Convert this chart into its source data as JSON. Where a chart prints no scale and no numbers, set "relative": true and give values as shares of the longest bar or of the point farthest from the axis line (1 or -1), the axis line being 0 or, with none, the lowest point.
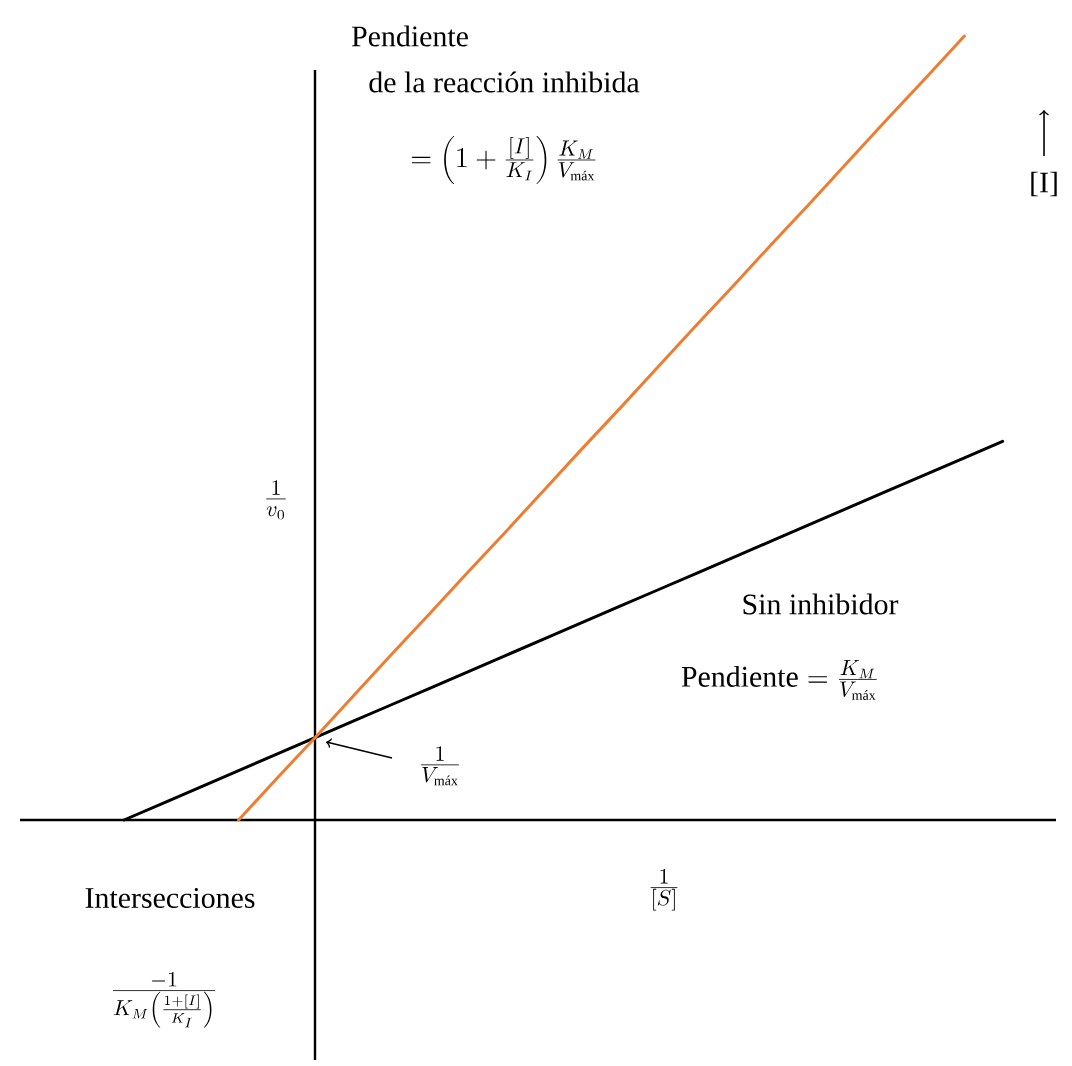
{
  "chart_data": {
    "type": "line",
    "relative": true,
    "xlabel": "\\frac{1}{[S]}",
    "ylabel": "\\frac{1}{v_0}",
    "categories": [
      null,
      null,
      null,
      null,
      null,
      null,
      null,
      null,
      null,
      null,
      null,
      null,
      null,
      null,
      null,
      null,
      null,
      null,
      null,
      null,
      null,
      null,
      null,
      null
    ],
    "series": [
      {
        "name": "Sin inhibidor",
        "color": "#000000",
        "values": [
          0,
          0.021,
          0.042,
          0.063,
          0.084,
          0.105,
          0.126,
          0.147,
          0.168,
          0.189,
          0.21,
          0.231,
          0.252,
          0.273,
          0.294,
          0.315,
          0.336,
          0.357,
          0.378,
          0.399,
          0.42,
          0.441,
          0.462,
          0.483
        ]
      },
      {
        "color": "#ed7d31",
        "values": [
          null,
          null,
          null,
          0,
          0.053,
          0.105,
          0.158,
          0.211,
          0.263,
          0.316,
          0.368,
          0.421,
          0.474,
          0.526,
          0.579,
          0.632,
          0.684,
          0.737,
          0.789,
          0.842,
          0.895,
          0.947,
          1.0,
          null
        ]
      }
    ],
    "annotations": [
      "Pendiente",
      "de la reacción inhibida",
      "= \\left(1+\\frac{[I]}{K_I}\\right)\\frac{K_M}{V_{\\mbox{\\scriptsize máx}}}",
      "[I]",
      "\\mbox{Pendiente} = \\frac{K_M}{V_{\\mbox{\\scriptsize máx}}}",
      "\\frac{1}{V_{\\mbox{\\scriptsize máx}}}",
      "Intersecciones",
      "\\frac{-1}{K_M\\left(\\frac{1+[I]}{K_I}\\right)}"
    ]
  }
}
